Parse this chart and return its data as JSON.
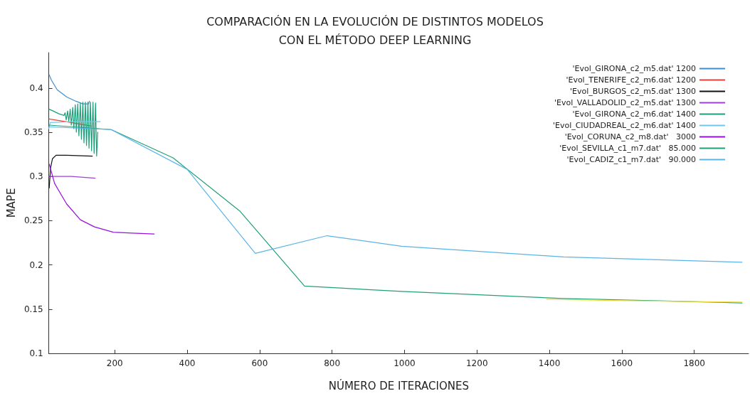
{
  "chart_data": {
    "type": "line",
    "title": "COMPARACIÓN EN LA EVOLUCIÓN DE DISTINTOS MODELOS\nCON EL MÉTODO DEEP LEARNING",
    "xlabel": "NÚMERO DE ITERACIONES",
    "ylabel": "MAPE",
    "xlim": [
      18,
      1950
    ],
    "xticks": [
      200,
      400,
      600,
      800,
      1000,
      1200,
      1400,
      1600,
      1800
    ],
    "ylim": [
      0.1,
      0.44
    ],
    "yticks": [
      0.1,
      0.15,
      0.2,
      0.25,
      0.3,
      0.35,
      0.4
    ],
    "grid": false,
    "legend": "top right",
    "marker": "none",
    "line_style": "solid",
    "series": [
      {
        "name": "'Evol_GIRONA_c2_m5.dat' 1200",
        "color": "#3f8fcf",
        "x": [
          19,
          25,
          41,
          67,
          93,
          112,
          128,
          130
        ],
        "values": [
          0.415,
          0.409,
          0.398,
          0.39,
          0.385,
          0.382,
          0.382,
          0.385
        ]
      },
      {
        "name": "'Evol_TENERIFE_c2_m6.dat' 1200",
        "color": "#e8403a",
        "x": [
          19,
          80,
          135
        ],
        "values": [
          0.365,
          0.361,
          0.357
        ]
      },
      {
        "name": "'Evol_BURGOS_c2_m5.dat' 1300",
        "color": "#111111",
        "x": [
          19,
          23,
          28,
          38,
          67,
          138
        ],
        "values": [
          0.287,
          0.31,
          0.32,
          0.324,
          0.324,
          0.323
        ]
      },
      {
        "name": "'Evol_VALLADOLID_c2_m5.dat' 1300",
        "color": "#a040d8",
        "x": [
          19,
          80,
          146
        ],
        "values": [
          0.3,
          0.3,
          0.298
        ]
      },
      {
        "name": "'Evol_GIRONA_c2_m6.dat' 1400",
        "color": "#1aa07a",
        "x": [
          19,
          30,
          45,
          60,
          63,
          66,
          70,
          73,
          77,
          80,
          84,
          87,
          91,
          94,
          98,
          101,
          105,
          108,
          112,
          115,
          119,
          122,
          126,
          129,
          133,
          136,
          140,
          143,
          147,
          150,
          153
        ],
        "values": [
          0.376,
          0.374,
          0.371,
          0.369,
          0.372,
          0.364,
          0.374,
          0.362,
          0.376,
          0.358,
          0.378,
          0.354,
          0.381,
          0.35,
          0.382,
          0.346,
          0.383,
          0.342,
          0.384,
          0.338,
          0.384,
          0.335,
          0.384,
          0.332,
          0.384,
          0.329,
          0.384,
          0.326,
          0.383,
          0.323,
          0.35
        ]
      },
      {
        "name": "'Evol_CIUDADREAL_c2_m6.dat' 1400",
        "color": "#72c6ee",
        "x": [
          18,
          22,
          80,
          160
        ],
        "values": [
          0.354,
          0.361,
          0.362,
          0.362
        ]
      },
      {
        "name": "'Evol_CORUNA_c2_m8.dat'   3000",
        "color": "#9a10dd",
        "x": [
          19,
          34,
          67,
          105,
          144,
          196,
          248,
          309
        ],
        "values": [
          0.314,
          0.292,
          0.269,
          0.251,
          0.243,
          0.237,
          0.236,
          0.235
        ]
      },
      {
        "name": "'Evol_SEVILLA_c1_m7.dat'   85.000",
        "color": "#20a078",
        "x": [
          19,
          190,
          361,
          545,
          724,
          992,
          1439,
          1932
        ],
        "values": [
          0.358,
          0.353,
          0.321,
          0.261,
          0.176,
          0.17,
          0.162,
          0.157
        ]
      },
      {
        "name": "'Evol_CADIZ_c1_m7.dat'   90.000",
        "color": "#5ab4e8",
        "x": [
          19,
          190,
          400,
          588,
          786,
          992,
          1439,
          1932
        ],
        "values": [
          0.356,
          0.353,
          0.308,
          0.213,
          0.233,
          0.221,
          0.209,
          0.203
        ]
      },
      {
        "color": "#f0e040",
        "x": [
          1392,
          1700,
          1932
        ],
        "values": [
          0.161,
          0.159,
          0.158
        ]
      }
    ]
  }
}
